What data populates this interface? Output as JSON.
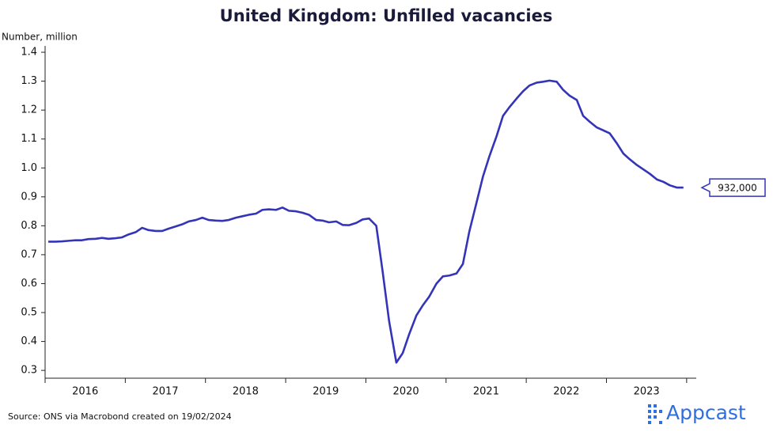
{
  "chart_data": {
    "type": "line",
    "title": "United Kingdom: Unfilled vacancies",
    "y_label": "Number, million",
    "source": "Source: ONS via Macrobond created on 19/02/2024",
    "brand": "Appcast",
    "series": [
      {
        "name": "Unfilled vacancies",
        "color": "#3434b8",
        "end_label": "932,000",
        "values": [
          0.745,
          0.745,
          0.746,
          0.748,
          0.75,
          0.75,
          0.754,
          0.755,
          0.758,
          0.755,
          0.757,
          0.76,
          0.77,
          0.778,
          0.793,
          0.785,
          0.782,
          0.782,
          0.79,
          0.798,
          0.805,
          0.815,
          0.82,
          0.828,
          0.82,
          0.818,
          0.817,
          0.82,
          0.828,
          0.833,
          0.838,
          0.842,
          0.855,
          0.857,
          0.855,
          0.863,
          0.852,
          0.85,
          0.845,
          0.838,
          0.82,
          0.818,
          0.812,
          0.815,
          0.803,
          0.802,
          0.81,
          0.822,
          0.825,
          0.8,
          0.64,
          0.47,
          0.327,
          0.36,
          0.425,
          0.49,
          0.525,
          0.555,
          0.6,
          0.625,
          0.628,
          0.635,
          0.668,
          0.78,
          0.88,
          0.97,
          1.04,
          1.11,
          1.18,
          1.21,
          1.24,
          1.265,
          1.285,
          1.295,
          1.298,
          1.302,
          1.298,
          1.27,
          1.25,
          1.235,
          1.18,
          1.16,
          1.14,
          1.13,
          1.12,
          1.085,
          1.05,
          1.03,
          1.01,
          0.995,
          0.98,
          0.96,
          0.952,
          0.94,
          0.932,
          0.932
        ]
      }
    ],
    "x": [
      2016.04,
      2016.13,
      2016.21,
      2016.29,
      2016.38,
      2016.46,
      2016.54,
      2016.63,
      2016.71,
      2016.79,
      2016.88,
      2016.96,
      2017.04,
      2017.13,
      2017.21,
      2017.29,
      2017.38,
      2017.46,
      2017.54,
      2017.63,
      2017.71,
      2017.79,
      2017.88,
      2017.96,
      2018.04,
      2018.13,
      2018.21,
      2018.29,
      2018.38,
      2018.46,
      2018.54,
      2018.63,
      2018.71,
      2018.79,
      2018.88,
      2018.96,
      2019.04,
      2019.13,
      2019.21,
      2019.29,
      2019.38,
      2019.46,
      2019.54,
      2019.63,
      2019.71,
      2019.79,
      2019.88,
      2019.96,
      2020.04,
      2020.13,
      2020.21,
      2020.29,
      2020.38,
      2020.46,
      2020.54,
      2020.63,
      2020.71,
      2020.79,
      2020.88,
      2020.96,
      2021.04,
      2021.13,
      2021.21,
      2021.29,
      2021.38,
      2021.46,
      2021.54,
      2021.63,
      2021.71,
      2021.79,
      2021.88,
      2021.96,
      2022.04,
      2022.13,
      2022.21,
      2022.29,
      2022.38,
      2022.46,
      2022.54,
      2022.63,
      2022.71,
      2022.79,
      2022.88,
      2022.96,
      2023.04,
      2023.13,
      2023.21,
      2023.29,
      2023.38,
      2023.46,
      2023.54,
      2023.63,
      2023.71,
      2023.79,
      2023.88,
      2023.96
    ],
    "xlim": [
      2016,
      2024.12
    ],
    "xticks": [
      {
        "value": 2016.5,
        "label": "2016"
      },
      {
        "value": 2017.5,
        "label": "2017"
      },
      {
        "value": 2018.5,
        "label": "2018"
      },
      {
        "value": 2019.5,
        "label": "2019"
      },
      {
        "value": 2020.5,
        "label": "2020"
      },
      {
        "value": 2021.5,
        "label": "2021"
      },
      {
        "value": 2022.5,
        "label": "2022"
      },
      {
        "value": 2023.5,
        "label": "2023"
      }
    ],
    "xtick_marks": [
      2016,
      2017,
      2018,
      2019,
      2020,
      2021,
      2022,
      2023,
      2024
    ],
    "ylim": [
      0.273,
      1.422
    ],
    "yticks": [
      0.3,
      0.4,
      0.5,
      0.6,
      0.7,
      0.8,
      0.9,
      {
        "value": 1,
        "label": "1.0"
      },
      1.1,
      1.2,
      1.3,
      1.4
    ]
  }
}
